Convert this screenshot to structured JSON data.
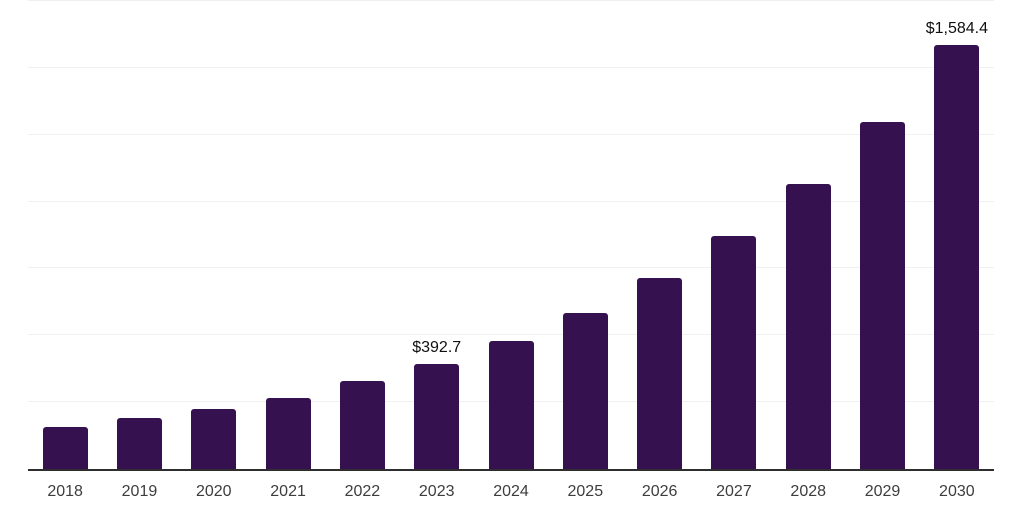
{
  "chart_data": {
    "type": "bar",
    "title": "",
    "xlabel": "",
    "ylabel": "",
    "categories": [
      "2018",
      "2019",
      "2020",
      "2021",
      "2022",
      "2023",
      "2024",
      "2025",
      "2026",
      "2027",
      "2028",
      "2029",
      "2030"
    ],
    "values": [
      158,
      191,
      225,
      266,
      330,
      392.7,
      479,
      585,
      714,
      871,
      1064,
      1298,
      1584.4
    ],
    "data_labels": {
      "2023": "$392.7",
      "2030": "$1,584.4"
    },
    "ylim": [
      0,
      1750
    ],
    "gridline_step": 250,
    "grid": "horizontal-only",
    "y_tick_labels_visible": false,
    "legend": "none",
    "colors": {
      "bar": "#361150",
      "axis_line": "#2e2e2e",
      "gridline": "#f0f0f0",
      "tick_label": "#3d3d3d",
      "data_label": "#101010",
      "background": "#ffffff"
    }
  }
}
